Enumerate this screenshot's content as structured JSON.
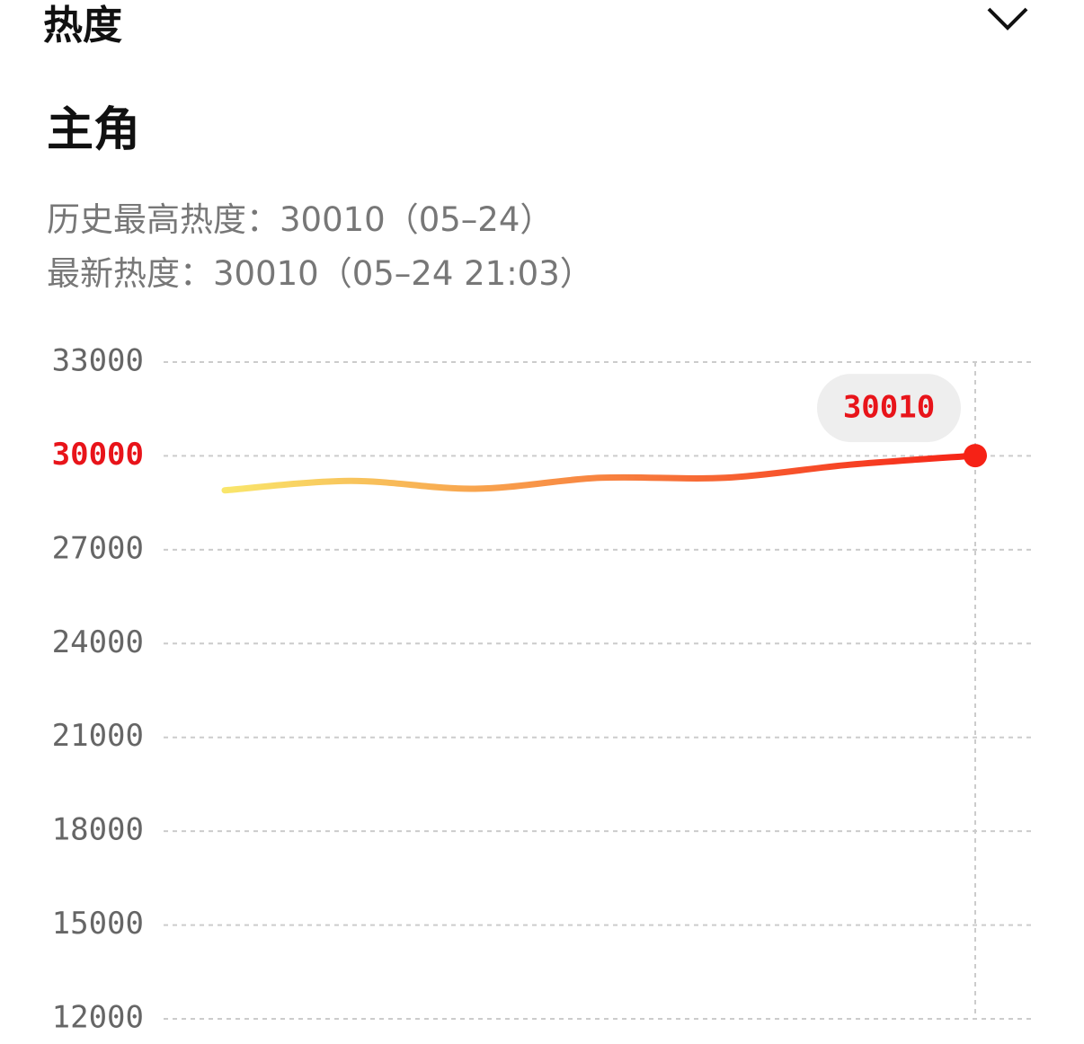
{
  "header": {
    "section": "热度",
    "title": "主角",
    "lines": [
      "历史最高热度：30010（05–24）",
      "最新热度：30010（05–24 21:03）"
    ]
  },
  "chart_data": {
    "type": "line",
    "categories": [
      null,
      null,
      null,
      null,
      null,
      null,
      null
    ],
    "series": [
      {
        "values": [
          28900,
          29200,
          28950,
          29300,
          29300,
          29720,
          30010
        ],
        "color": "#f62216",
        "gradient": [
          "#f9e66b",
          "#f62216"
        ]
      }
    ],
    "ylim": [
      12000,
      33000
    ],
    "yticks": [
      12000,
      15000,
      18000,
      21000,
      24000,
      27000,
      30000,
      33000
    ],
    "grid": true,
    "highlight_color": "#e8141a"
  }
}
